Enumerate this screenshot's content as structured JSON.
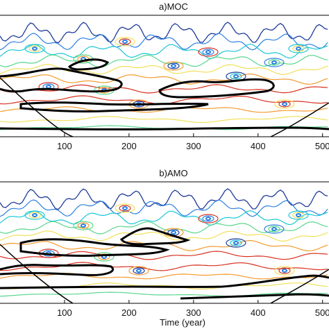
{
  "chart_data": [
    {
      "type": "heatmap",
      "title": "a)MOC",
      "xlabel": "",
      "xlim": [
        0,
        510
      ],
      "x_ticks": [
        "100",
        "200",
        "300",
        "400",
        "500"
      ],
      "grid": false,
      "colormap": [
        "#1f3b99",
        "#2c7fe0",
        "#19c7d6",
        "#58d68d",
        "#f1e05a",
        "#f29b2f",
        "#d7301f"
      ],
      "significance_contour_color": "#000000"
    },
    {
      "type": "heatmap",
      "title": "b)AMO",
      "xlabel": "Time (year)",
      "xlim": [
        0,
        510
      ],
      "x_ticks": [
        "100",
        "200",
        "300",
        "400",
        "500"
      ],
      "grid": false,
      "colormap": [
        "#1f3b99",
        "#2c7fe0",
        "#19c7d6",
        "#58d68d",
        "#f1e05a",
        "#f29b2f",
        "#d7301f"
      ],
      "significance_contour_color": "#000000"
    }
  ]
}
